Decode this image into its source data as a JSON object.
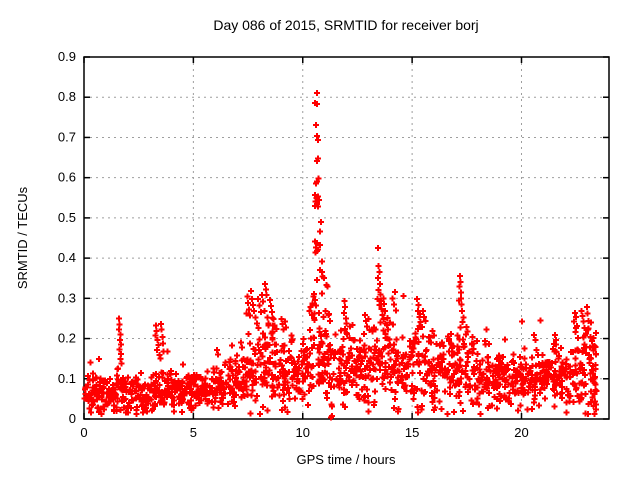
{
  "figure": {
    "background_color": "#ffffff",
    "text_color": "#000000",
    "border_color": "#000000"
  },
  "chart_data": {
    "type": "scatter",
    "title": "Day 086 of 2015, SRMTID for receiver borj",
    "xlabel": "GPS time / hours",
    "ylabel": "SRMTID / TECUs",
    "xlim": [
      0,
      24
    ],
    "ylim": [
      0,
      0.9
    ],
    "xticks": [
      0,
      5,
      10,
      15,
      20
    ],
    "yticks": [
      0,
      0.1,
      0.2,
      0.3,
      0.4,
      0.5,
      0.6,
      0.7,
      0.8,
      0.9
    ],
    "grid": {
      "show": true,
      "style": "dashed",
      "color": "#9e9e9e",
      "x_lines": [
        5,
        10,
        15,
        20
      ],
      "y_lines": [
        0.1,
        0.2,
        0.3,
        0.4,
        0.5,
        0.6,
        0.7,
        0.8
      ]
    },
    "legend": "none",
    "marker": {
      "shape": "+",
      "color": "#ff0000",
      "size": 7,
      "stroke_width": 2
    },
    "series": [
      {
        "name": "SRMTID",
        "points": [
          [
            1.6,
            0.25
          ],
          [
            1.63,
            0.235
          ],
          [
            1.61,
            0.222
          ],
          [
            1.66,
            0.21
          ],
          [
            1.64,
            0.197
          ],
          [
            1.68,
            0.185
          ],
          [
            1.62,
            0.173
          ],
          [
            1.7,
            0.161
          ],
          [
            1.67,
            0.149
          ],
          [
            1.72,
            0.138
          ],
          [
            3.28,
            0.232
          ],
          [
            3.31,
            0.219
          ],
          [
            3.26,
            0.207
          ],
          [
            3.36,
            0.196
          ],
          [
            3.4,
            0.184
          ],
          [
            3.33,
            0.171
          ],
          [
            3.44,
            0.159
          ],
          [
            3.52,
            0.236
          ],
          [
            3.55,
            0.223
          ],
          [
            3.58,
            0.204
          ],
          [
            3.61,
            0.188
          ],
          [
            3.63,
            0.168
          ],
          [
            3.49,
            0.151
          ],
          [
            6.08,
            0.172
          ],
          [
            6.13,
            0.16
          ],
          [
            7.18,
            0.19
          ],
          [
            7.23,
            0.178
          ],
          [
            7.42,
            0.262
          ],
          [
            7.48,
            0.304
          ],
          [
            7.5,
            0.288
          ],
          [
            7.54,
            0.272
          ],
          [
            7.58,
            0.257
          ],
          [
            7.63,
            0.318
          ],
          [
            7.67,
            0.298
          ],
          [
            7.72,
            0.283
          ],
          [
            7.78,
            0.268
          ],
          [
            7.84,
            0.252
          ],
          [
            7.9,
            0.238
          ],
          [
            7.96,
            0.298
          ],
          [
            8.02,
            0.282
          ],
          [
            8.08,
            0.266
          ],
          [
            8.14,
            0.308
          ],
          [
            8.19,
            0.292
          ],
          [
            8.24,
            0.268
          ],
          [
            8.28,
            0.336
          ],
          [
            8.31,
            0.322
          ],
          [
            8.34,
            0.308
          ],
          [
            8.38,
            0.252
          ],
          [
            8.44,
            0.238
          ],
          [
            8.5,
            0.296
          ],
          [
            8.55,
            0.281
          ],
          [
            8.6,
            0.266
          ],
          [
            8.66,
            0.248
          ],
          [
            8.71,
            0.233
          ],
          [
            9.03,
            0.249
          ],
          [
            9.08,
            0.236
          ],
          [
            9.13,
            0.222
          ],
          [
            9.18,
            0.243
          ],
          [
            9.24,
            0.228
          ],
          [
            9.48,
            0.208
          ],
          [
            9.54,
            0.198
          ],
          [
            10.64,
            0.811
          ],
          [
            10.57,
            0.786
          ],
          [
            10.66,
            0.783
          ],
          [
            10.61,
            0.731
          ],
          [
            10.64,
            0.704
          ],
          [
            10.69,
            0.694
          ],
          [
            10.69,
            0.648
          ],
          [
            10.64,
            0.642
          ],
          [
            10.73,
            0.598
          ],
          [
            10.64,
            0.59
          ],
          [
            10.6,
            0.586
          ],
          [
            10.55,
            0.557
          ],
          [
            10.7,
            0.553
          ],
          [
            10.62,
            0.549
          ],
          [
            10.75,
            0.545
          ],
          [
            10.58,
            0.541
          ],
          [
            10.65,
            0.535
          ],
          [
            10.55,
            0.53
          ],
          [
            10.7,
            0.528
          ],
          [
            10.83,
            0.49
          ],
          [
            10.79,
            0.466
          ],
          [
            10.55,
            0.441
          ],
          [
            10.66,
            0.437
          ],
          [
            10.79,
            0.432
          ],
          [
            10.61,
            0.427
          ],
          [
            10.7,
            0.422
          ],
          [
            10.64,
            0.418
          ],
          [
            10.58,
            0.414
          ],
          [
            10.88,
            0.391
          ],
          [
            10.79,
            0.37
          ],
          [
            10.88,
            0.366
          ],
          [
            10.91,
            0.354
          ],
          [
            10.98,
            0.35
          ],
          [
            10.66,
            0.346
          ],
          [
            11.08,
            0.333
          ],
          [
            11.14,
            0.329
          ],
          [
            10.88,
            0.312
          ],
          [
            10.5,
            0.304
          ],
          [
            10.57,
            0.296
          ],
          [
            10.45,
            0.287
          ],
          [
            10.35,
            0.278
          ],
          [
            10.3,
            0.268
          ],
          [
            10.42,
            0.259
          ],
          [
            10.52,
            0.251
          ],
          [
            10.6,
            0.282
          ],
          [
            10.75,
            0.264
          ],
          [
            10.95,
            0.253
          ],
          [
            11.05,
            0.269
          ],
          [
            11.18,
            0.258
          ],
          [
            11.25,
            0.244
          ],
          [
            11.28,
            0.004
          ],
          [
            11.33,
            0.007
          ],
          [
            11.9,
            0.293
          ],
          [
            11.94,
            0.279
          ],
          [
            11.89,
            0.264
          ],
          [
            11.97,
            0.25
          ],
          [
            12.0,
            0.238
          ],
          [
            11.93,
            0.224
          ],
          [
            12.02,
            0.211
          ],
          [
            11.87,
            0.199
          ],
          [
            12.84,
            0.258
          ],
          [
            12.89,
            0.244
          ],
          [
            12.94,
            0.23
          ],
          [
            13.0,
            0.249
          ],
          [
            13.05,
            0.221
          ],
          [
            13.44,
            0.425
          ],
          [
            13.46,
            0.381
          ],
          [
            13.5,
            0.366
          ],
          [
            13.43,
            0.351
          ],
          [
            13.52,
            0.336
          ],
          [
            13.47,
            0.321
          ],
          [
            13.55,
            0.309
          ],
          [
            13.41,
            0.298
          ],
          [
            13.58,
            0.293
          ],
          [
            13.5,
            0.284
          ],
          [
            13.6,
            0.274
          ],
          [
            13.65,
            0.259
          ],
          [
            13.7,
            0.299
          ],
          [
            13.72,
            0.286
          ],
          [
            13.75,
            0.269
          ],
          [
            13.68,
            0.249
          ],
          [
            13.78,
            0.238
          ],
          [
            14.1,
            0.299
          ],
          [
            14.16,
            0.285
          ],
          [
            14.21,
            0.316
          ],
          [
            14.26,
            0.27
          ],
          [
            15.23,
            0.298
          ],
          [
            15.28,
            0.284
          ],
          [
            15.26,
            0.269
          ],
          [
            15.33,
            0.254
          ],
          [
            15.39,
            0.241
          ],
          [
            15.44,
            0.229
          ],
          [
            15.49,
            0.268
          ],
          [
            15.54,
            0.253
          ],
          [
            15.94,
            0.219
          ],
          [
            16.0,
            0.207
          ],
          [
            17.15,
            0.294
          ],
          [
            17.17,
            0.33
          ],
          [
            17.19,
            0.355
          ],
          [
            17.21,
            0.341
          ],
          [
            17.23,
            0.315
          ],
          [
            17.24,
            0.3
          ],
          [
            17.26,
            0.285
          ],
          [
            17.28,
            0.268
          ],
          [
            17.31,
            0.241
          ],
          [
            17.34,
            0.252
          ],
          [
            17.49,
            0.229
          ],
          [
            17.54,
            0.218
          ],
          [
            20.58,
            0.209
          ],
          [
            20.63,
            0.196
          ],
          [
            21.48,
            0.186
          ],
          [
            21.53,
            0.209
          ],
          [
            21.58,
            0.196
          ],
          [
            22.41,
            0.243
          ],
          [
            22.44,
            0.264
          ],
          [
            22.49,
            0.254
          ],
          [
            22.53,
            0.231
          ],
          [
            22.47,
            0.216
          ],
          [
            22.58,
            0.202
          ],
          [
            22.74,
            0.269
          ],
          [
            22.79,
            0.256
          ],
          [
            22.84,
            0.242
          ],
          [
            22.89,
            0.226
          ],
          [
            22.94,
            0.212
          ],
          [
            22.99,
            0.279
          ],
          [
            23.02,
            0.262
          ],
          [
            23.06,
            0.244
          ],
          [
            23.12,
            0.178
          ],
          [
            23.18,
            0.151
          ],
          [
            23.23,
            0.122
          ],
          [
            23.28,
            0.093
          ],
          [
            23.33,
            0.062
          ],
          [
            23.3,
            0.032
          ],
          [
            23.37,
            0.043
          ],
          [
            23.25,
            0.053
          ],
          [
            23.34,
            0.101
          ],
          [
            23.39,
            0.072
          ]
        ],
        "baseline_envelope": {
          "note": "dense background scatter read from plot; bins are [start_hour, center_TECU, half_spread_TECU]",
          "bin_width_hours": 0.5,
          "points_per_bin": 34,
          "seed": 20150386,
          "x_max": 23.42,
          "y_min": 0.012,
          "bins": [
            [
              0.0,
              0.062,
              0.035
            ],
            [
              0.5,
              0.063,
              0.035
            ],
            [
              1.0,
              0.058,
              0.032
            ],
            [
              1.5,
              0.068,
              0.042
            ],
            [
              2.0,
              0.062,
              0.038
            ],
            [
              2.5,
              0.054,
              0.03
            ],
            [
              3.0,
              0.06,
              0.034
            ],
            [
              3.5,
              0.072,
              0.045
            ],
            [
              4.0,
              0.065,
              0.032
            ],
            [
              4.5,
              0.07,
              0.034
            ],
            [
              5.0,
              0.074,
              0.035
            ],
            [
              5.5,
              0.079,
              0.038
            ],
            [
              6.0,
              0.084,
              0.042
            ],
            [
              6.5,
              0.089,
              0.044
            ],
            [
              7.0,
              0.094,
              0.048
            ],
            [
              7.5,
              0.118,
              0.075
            ],
            [
              8.0,
              0.126,
              0.085
            ],
            [
              8.5,
              0.118,
              0.078
            ],
            [
              9.0,
              0.108,
              0.068
            ],
            [
              9.5,
              0.108,
              0.058
            ],
            [
              10.0,
              0.128,
              0.068
            ],
            [
              10.5,
              0.148,
              0.085
            ],
            [
              11.0,
              0.126,
              0.075
            ],
            [
              11.5,
              0.108,
              0.058
            ],
            [
              12.0,
              0.126,
              0.075
            ],
            [
              12.5,
              0.118,
              0.068
            ],
            [
              13.0,
              0.126,
              0.075
            ],
            [
              13.5,
              0.136,
              0.085
            ],
            [
              14.0,
              0.118,
              0.075
            ],
            [
              14.5,
              0.126,
              0.075
            ],
            [
              15.0,
              0.136,
              0.078
            ],
            [
              15.5,
              0.118,
              0.068
            ],
            [
              16.0,
              0.108,
              0.058
            ],
            [
              16.5,
              0.118,
              0.068
            ],
            [
              17.0,
              0.126,
              0.075
            ],
            [
              17.5,
              0.118,
              0.068
            ],
            [
              18.0,
              0.098,
              0.058
            ],
            [
              18.5,
              0.093,
              0.05
            ],
            [
              19.0,
              0.088,
              0.048
            ],
            [
              19.5,
              0.098,
              0.055
            ],
            [
              20.0,
              0.093,
              0.05
            ],
            [
              20.5,
              0.098,
              0.055
            ],
            [
              21.0,
              0.098,
              0.055
            ],
            [
              21.5,
              0.108,
              0.062
            ],
            [
              22.0,
              0.098,
              0.055
            ],
            [
              22.5,
              0.128,
              0.085
            ],
            [
              23.0,
              0.115,
              0.085
            ]
          ]
        }
      }
    ]
  }
}
